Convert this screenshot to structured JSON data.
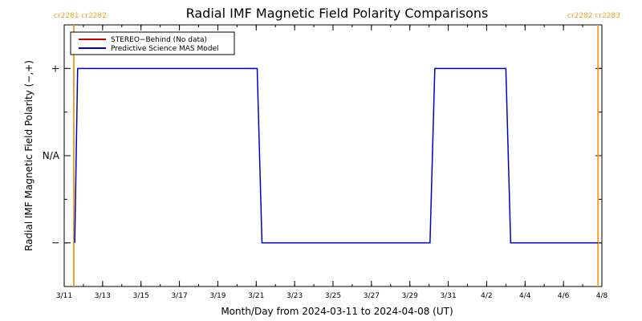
{
  "chart_data": {
    "type": "line",
    "title": "Radial IMF Magnetic Field Polarity Comparisons",
    "xlabel": "Month/Day from 2024-03-11 to 2024-04-08 (UT)",
    "ylabel": "Radial IMF Magnetic Field Polarity (−,+)",
    "x_range": [
      "2024-03-11",
      "2024-04-08"
    ],
    "x_ticks": [
      "3/11",
      "3/13",
      "3/15",
      "3/17",
      "3/19",
      "3/21",
      "3/23",
      "3/25",
      "3/27",
      "3/29",
      "3/31",
      "4/2",
      "4/4",
      "4/6",
      "4/8"
    ],
    "y_range": [
      -1.5,
      1.5
    ],
    "y_ticks": [
      {
        "value": 1,
        "label": "+"
      },
      {
        "value": 0,
        "label": "N/A"
      },
      {
        "value": -1,
        "label": "−"
      }
    ],
    "legend": {
      "placement": "top-left",
      "entries": [
        {
          "label": "STEREO−Behind (No data)",
          "color": "#cc0000"
        },
        {
          "label": "Predictive Science MAS Model",
          "color": "#0000cc"
        }
      ]
    },
    "rotation_markers": [
      {
        "date": "2024-03-11.5",
        "label": "cr2281 cr2282",
        "color": "#f0a030"
      },
      {
        "date": "2024-04-07.8",
        "label": "cr2282 cr2283",
        "color": "#f0a030"
      }
    ],
    "series": [
      {
        "name": "Predictive Science MAS Model",
        "color": "#0000cc",
        "points": [
          [
            "2024-03-11.55",
            -1
          ],
          [
            "2024-03-11.7",
            1
          ],
          [
            "2024-03-21.05",
            1
          ],
          [
            "2024-03-21.3",
            -1
          ],
          [
            "2024-03-30.05",
            -1
          ],
          [
            "2024-03-30.3",
            1
          ],
          [
            "2024-04-03.0",
            1
          ],
          [
            "2024-04-03.25",
            -1
          ],
          [
            "2024-04-07.8",
            -1
          ]
        ]
      }
    ]
  }
}
